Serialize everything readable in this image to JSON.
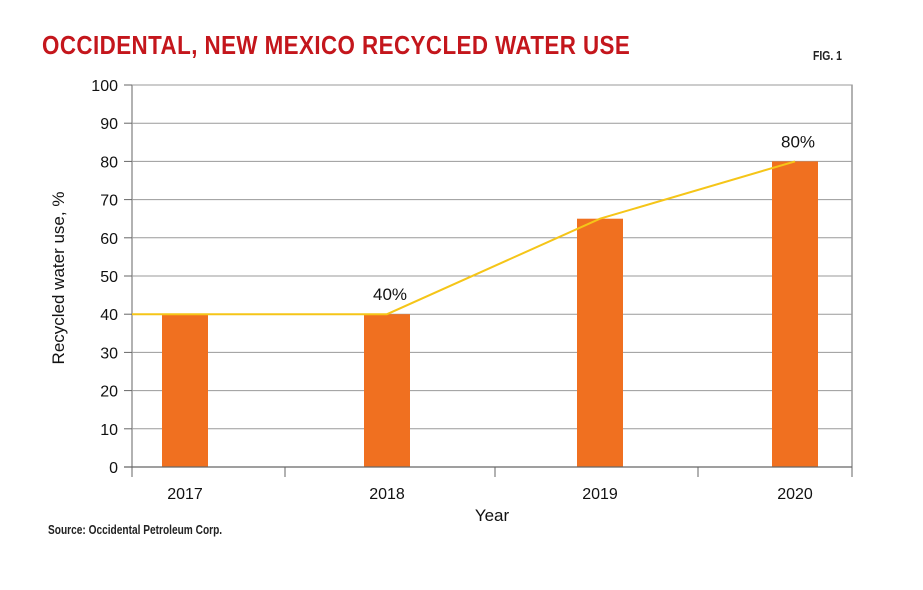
{
  "header": {
    "title": "OCCIDENTAL, NEW MEXICO RECYCLED WATER USE",
    "fig_label": "FIG. 1"
  },
  "footer": {
    "source": "Source: Occidental Petroleum Corp."
  },
  "colors": {
    "title": "#c4161c",
    "bar": "#f07020",
    "trend_line": "#f5c518",
    "grid": "#9a9a9a",
    "axis": "#666666"
  },
  "chart_data": {
    "type": "bar",
    "title": "OCCIDENTAL, NEW MEXICO RECYCLED WATER USE",
    "xlabel": "Year",
    "ylabel": "Recycled water use, %",
    "categories": [
      "2017",
      "2018",
      "2019",
      "2020"
    ],
    "series": [
      {
        "name": "Recycled water use",
        "values": [
          40,
          40,
          65,
          80
        ]
      }
    ],
    "trend_line": [
      {
        "x": "start",
        "y": 40
      },
      {
        "x": "2018",
        "y": 40
      },
      {
        "x": "2019",
        "y": 65
      },
      {
        "x": "2020",
        "y": 80
      }
    ],
    "data_labels": [
      {
        "category": "2018",
        "text": "40%"
      },
      {
        "category": "2020",
        "text": "80%"
      }
    ],
    "ylim": [
      0,
      100
    ],
    "yticks": [
      0,
      10,
      20,
      30,
      40,
      50,
      60,
      70,
      80,
      90,
      100
    ],
    "grid": true,
    "legend": "none"
  }
}
